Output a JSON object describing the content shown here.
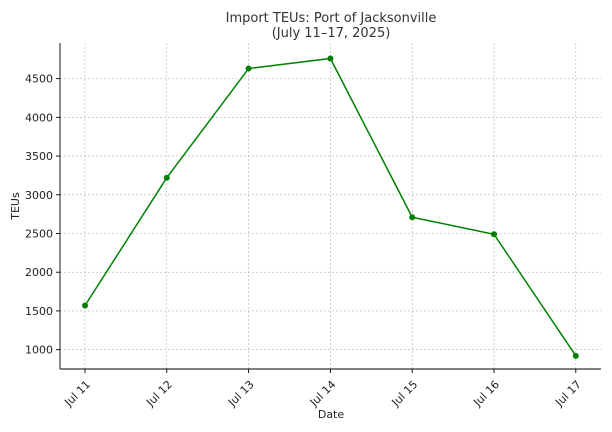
{
  "chart_data": {
    "type": "line",
    "title": "Import TEUs: Port of Jacksonville",
    "subtitle": "(July 11–17, 2025)",
    "xlabel": "Date",
    "ylabel": "TEUs",
    "categories": [
      "Jul 11",
      "Jul 12",
      "Jul 13",
      "Jul 14",
      "Jul 15",
      "Jul 16",
      "Jul 17"
    ],
    "series": [
      {
        "values": [
          1570,
          3220,
          4630,
          4760,
          2710,
          2490,
          920
        ],
        "color": "#008000"
      }
    ],
    "yticks": [
      1000,
      1500,
      2000,
      2500,
      3000,
      3500,
      4000,
      4500
    ],
    "ylim": [
      750,
      4960
    ],
    "grid": true,
    "marker": "circle"
  }
}
